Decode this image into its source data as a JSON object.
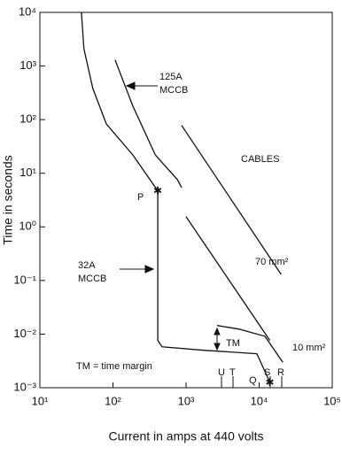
{
  "chart_data": {
    "type": "line",
    "xlabel": "Current in amps at 440 volts",
    "ylabel": "Time in seconds",
    "xscale": "log",
    "yscale": "log",
    "xlim": [
      10,
      100000
    ],
    "ylim": [
      0.001,
      10000
    ],
    "xticks": [
      {
        "value": 10,
        "label": "10¹"
      },
      {
        "value": 100,
        "label": "10²"
      },
      {
        "value": 1000,
        "label": "10³"
      },
      {
        "value": 10000,
        "label": "10⁴"
      },
      {
        "value": 100000,
        "label": "10⁵"
      }
    ],
    "yticks": [
      {
        "value": 0.001,
        "label": "10⁻³"
      },
      {
        "value": 0.01,
        "label": "10⁻²"
      },
      {
        "value": 0.1,
        "label": "10⁻¹"
      },
      {
        "value": 1,
        "label": "10⁰"
      },
      {
        "value": 10,
        "label": "10¹"
      },
      {
        "value": 100,
        "label": "10²"
      },
      {
        "value": 1000,
        "label": "10³"
      },
      {
        "value": 10000,
        "label": "10⁴"
      }
    ],
    "series": [
      {
        "name": "32A MCCB",
        "color": "#111111",
        "x": [
          37,
          40,
          53,
          81,
          187,
          410,
          410,
          470,
          1740,
          9300,
          14000
        ],
        "values": [
          10000,
          2100,
          380,
          83,
          22,
          4.7,
          0.0076,
          0.0058,
          0.005,
          0.0043,
          0.00126
        ]
      },
      {
        "name": "125A MCCB",
        "color": "#111111",
        "x": [
          107,
          187,
          380,
          760,
          870,
          870,
          2650,
          5300,
          12000,
          21000
        ],
        "values": [
          1300,
          180,
          22,
          7.6,
          5.4,
          null,
          0.0145,
          0.0124,
          0.0091,
          0.003
        ]
      },
      {
        "name": "10 mm²",
        "color": "#111111",
        "x": [
          1000,
          14000
        ],
        "values": [
          1.55,
          0.0076
        ]
      },
      {
        "name": "70 mm²",
        "color": "#111111",
        "x": [
          870,
          20000
        ],
        "values": [
          78,
          0.13
        ]
      }
    ],
    "annotations": [
      "CABLES",
      "P",
      "TM",
      "TM = time margin",
      "U",
      "T",
      "Q",
      "S",
      "R"
    ]
  }
}
